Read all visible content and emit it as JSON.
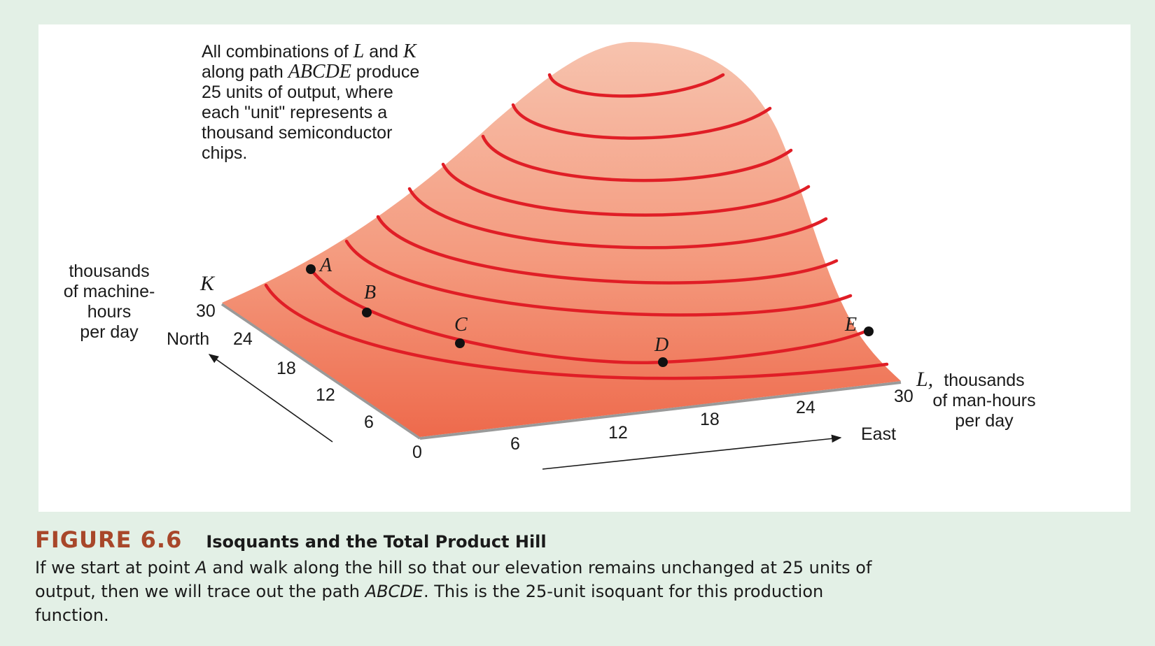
{
  "annotation": {
    "line1a": "All combinations of ",
    "line1_L": "L",
    "line1b": " and ",
    "line1_K": "K",
    "line2a": "along path ",
    "line2_path": "ABCDE",
    "line2b": " produce",
    "line3": "25 units of output, where",
    "line4": "each \"unit\" represents a",
    "line5": "thousand semiconductor",
    "line6": "chips."
  },
  "k_axis": {
    "symbol": "K",
    "label_lines": [
      "thousands",
      "of machine-",
      "hours",
      "per day"
    ],
    "direction": "North",
    "ticks": [
      "30",
      "24",
      "18",
      "12",
      "6"
    ]
  },
  "l_axis": {
    "symbol": "L,",
    "label_lines": [
      "thousands",
      "of man-hours",
      "per day"
    ],
    "direction": "East",
    "ticks": [
      "6",
      "12",
      "18",
      "24",
      "30"
    ]
  },
  "origin": "0",
  "points": [
    {
      "label": "A"
    },
    {
      "label": "B"
    },
    {
      "label": "C"
    },
    {
      "label": "D"
    },
    {
      "label": "E"
    }
  ],
  "colors": {
    "hill_top": "#f7c2ad",
    "hill_bottom": "#ee6a4c",
    "isoquant": "#e01e26",
    "figure_accent": "#a8472a"
  },
  "caption": {
    "number": "FIGURE 6.6",
    "title": "Isoquants and the Total Product Hill",
    "body_a": "If we start at point ",
    "body_A": "A",
    "body_b": " and walk along the hill so that our elevation remains unchanged at 25 units of output, then we will trace out the path ",
    "body_path": "ABCDE",
    "body_c": ". This is the 25-unit isoquant for this production function."
  }
}
